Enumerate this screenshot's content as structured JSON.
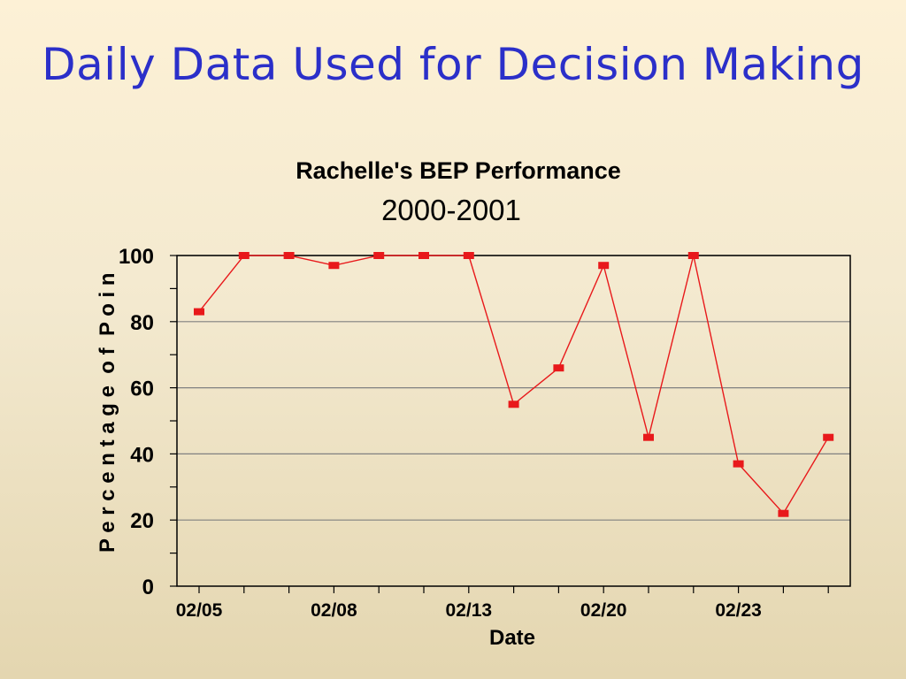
{
  "slide": {
    "title": "Daily Data Used for Decision Making"
  },
  "colors": {
    "title": "#2b2fc9",
    "series": "#e8191b",
    "gridline": "#808080"
  },
  "chart_data": {
    "type": "line",
    "title": "Rachelle's BEP Performance",
    "subtitle": "2000-2001",
    "xlabel": "Date",
    "ylabel": "P e r c e n t a g e  o f  P o i n",
    "ylim": [
      0,
      100
    ],
    "yticks": [
      0,
      20,
      40,
      60,
      80,
      100
    ],
    "xtick_labels": [
      "02/05",
      "",
      "",
      "02/08",
      "",
      "",
      "02/13",
      "",
      "",
      "02/20",
      "",
      "",
      "02/23",
      "",
      ""
    ],
    "grid": true,
    "series": [
      {
        "values": [
          83,
          100,
          100,
          97,
          100,
          100,
          100,
          55,
          66,
          97,
          45,
          100,
          37,
          22,
          45
        ]
      }
    ]
  }
}
